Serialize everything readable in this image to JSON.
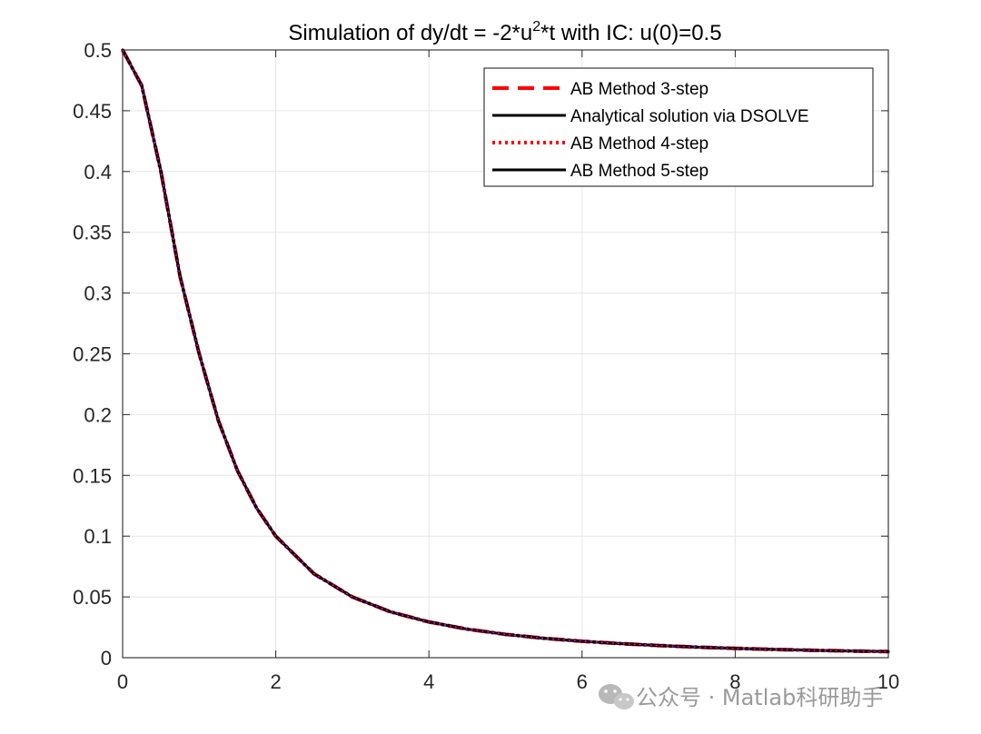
{
  "chart_data": {
    "type": "line",
    "title": {
      "prefix": "Simulation of dy/dt = -2*u",
      "superscript": "2",
      "suffix": "*t with IC: u(0)=0.5"
    },
    "xlabel": "",
    "ylabel": "",
    "xlim": [
      0,
      10
    ],
    "ylim": [
      0,
      0.5
    ],
    "x_ticks": [
      0,
      2,
      4,
      6,
      8,
      10
    ],
    "x_tick_labels": [
      "0",
      "2",
      "4",
      "6",
      "8",
      "10"
    ],
    "y_ticks": [
      0,
      0.05,
      0.1,
      0.15,
      0.2,
      0.25,
      0.3,
      0.35,
      0.4,
      0.45,
      0.5
    ],
    "y_tick_labels": [
      "0",
      "0.05",
      "0.1",
      "0.15",
      "0.2",
      "0.25",
      "0.3",
      "0.35",
      "0.4",
      "0.45",
      "0.5"
    ],
    "grid": true,
    "legend_position": "top-right",
    "x": [
      0,
      0.25,
      0.5,
      0.75,
      1,
      1.25,
      1.5,
      1.75,
      2,
      2.5,
      3,
      3.5,
      4,
      4.5,
      5,
      5.5,
      6,
      6.5,
      7,
      7.5,
      8,
      8.5,
      9,
      9.5,
      10
    ],
    "series": [
      {
        "name": "AB Method 3-step",
        "color": "#ff0000",
        "style": "dashed",
        "values": [
          0.5,
          0.4706,
          0.4,
          0.3137,
          0.25,
          0.1951,
          0.1538,
          0.1231,
          0.1,
          0.069,
          0.05,
          0.0377,
          0.0294,
          0.0235,
          0.0192,
          0.016,
          0.0135,
          0.0116,
          0.01,
          0.0087,
          0.0077,
          0.0068,
          0.0061,
          0.0055,
          0.005
        ]
      },
      {
        "name": "Analytical solution via DSOLVE",
        "color": "#000000",
        "style": "solid",
        "values": [
          0.5,
          0.4706,
          0.4,
          0.3137,
          0.25,
          0.1951,
          0.1538,
          0.1231,
          0.1,
          0.069,
          0.05,
          0.0377,
          0.0294,
          0.0235,
          0.0192,
          0.016,
          0.0135,
          0.0116,
          0.01,
          0.0087,
          0.0077,
          0.0068,
          0.0061,
          0.0055,
          0.005
        ]
      },
      {
        "name": "AB Method 4-step",
        "color": "#ff0000",
        "style": "dotted",
        "values": [
          0.5,
          0.4706,
          0.4,
          0.3137,
          0.25,
          0.1951,
          0.1538,
          0.1231,
          0.1,
          0.069,
          0.05,
          0.0377,
          0.0294,
          0.0235,
          0.0192,
          0.016,
          0.0135,
          0.0116,
          0.01,
          0.0087,
          0.0077,
          0.0068,
          0.0061,
          0.0055,
          0.005
        ]
      },
      {
        "name": "AB Method 5-step",
        "color": "#000000",
        "style": "solid",
        "values": [
          0.5,
          0.4706,
          0.4,
          0.3137,
          0.25,
          0.1951,
          0.1538,
          0.1231,
          0.1,
          0.069,
          0.05,
          0.0377,
          0.0294,
          0.0235,
          0.0192,
          0.016,
          0.0135,
          0.0116,
          0.01,
          0.0087,
          0.0077,
          0.0068,
          0.0061,
          0.0055,
          0.005
        ]
      }
    ],
    "curve_highlight_color": "#ff00ff"
  },
  "watermark": {
    "text": "公众号 · Matlab科研助手",
    "icon": "wechat-icon"
  }
}
